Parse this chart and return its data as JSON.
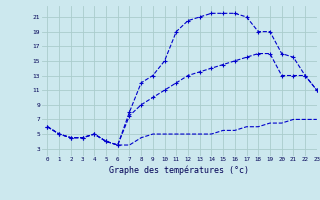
{
  "title": "Graphe des températures (°c)",
  "bg_color": "#cce8ee",
  "grid_color": "#aacccc",
  "line_color": "#0000cc",
  "xlim": [
    -0.5,
    23
  ],
  "ylim": [
    2,
    22.5
  ],
  "xticks": [
    0,
    1,
    2,
    3,
    4,
    5,
    6,
    7,
    8,
    9,
    10,
    11,
    12,
    13,
    14,
    15,
    16,
    17,
    18,
    19,
    20,
    21,
    22,
    23
  ],
  "yticks": [
    3,
    5,
    7,
    9,
    11,
    13,
    15,
    17,
    19,
    21
  ],
  "line1_x": [
    0,
    1,
    2,
    3,
    4,
    5,
    6,
    7,
    8,
    9,
    10,
    11,
    12,
    13,
    14,
    15,
    16,
    17,
    18,
    19,
    20,
    21,
    22,
    23
  ],
  "line1_y": [
    6,
    5,
    4.5,
    4.5,
    5,
    4,
    3.5,
    3.5,
    4.5,
    5,
    5,
    5,
    5,
    5,
    5,
    5.5,
    5.5,
    6,
    6,
    6.5,
    6.5,
    7,
    7,
    7
  ],
  "line2_x": [
    0,
    1,
    2,
    3,
    4,
    5,
    6,
    7,
    8,
    9,
    10,
    11,
    12,
    13,
    14,
    15,
    16,
    17,
    18,
    19,
    20,
    21,
    22,
    23
  ],
  "line2_y": [
    6,
    5,
    4.5,
    4.5,
    5,
    4,
    3.5,
    7.5,
    9,
    10,
    11,
    12,
    13,
    13.5,
    14,
    14.5,
    15,
    15.5,
    16,
    16,
    13,
    13,
    13,
    11
  ],
  "line3_x": [
    0,
    1,
    2,
    3,
    4,
    5,
    6,
    7,
    8,
    9,
    10,
    11,
    12,
    13,
    14,
    15,
    16,
    17,
    18,
    19,
    20,
    21,
    22,
    23
  ],
  "line3_y": [
    6,
    5,
    4.5,
    4.5,
    5,
    4,
    3.5,
    8,
    12,
    13,
    15,
    19,
    20.5,
    21,
    21.5,
    21.5,
    21.5,
    21,
    19,
    19,
    16,
    15.5,
    13,
    11
  ]
}
